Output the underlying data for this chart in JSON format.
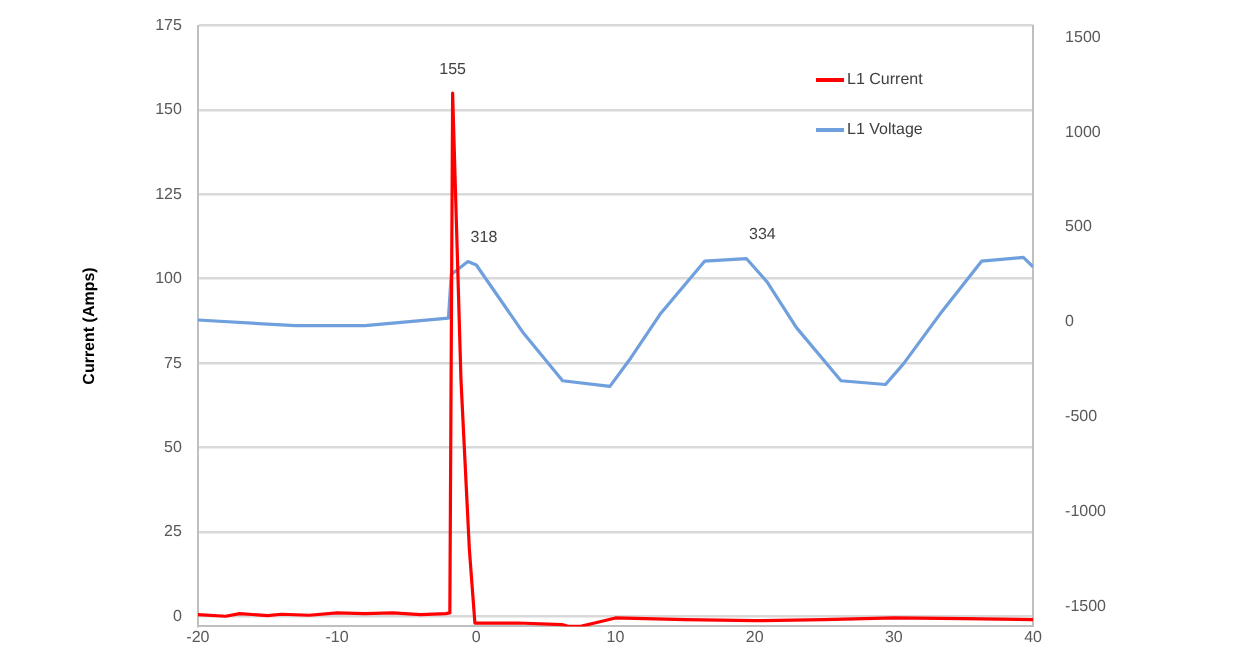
{
  "chart_data": {
    "type": "line",
    "ylabel": "Current (Amps)",
    "xlim": [
      -20,
      40
    ],
    "xticks": [
      -20,
      -10,
      0,
      10,
      20,
      30,
      40
    ],
    "ylim": [
      -3,
      175
    ],
    "yticks": [
      0,
      25,
      50,
      75,
      100,
      125,
      150,
      175
    ],
    "y2lim": [
      -1605,
      1562
    ],
    "y2ticks": [
      -1500,
      -1000,
      -500,
      0,
      500,
      1000,
      1500
    ],
    "grid": "y",
    "legend": "top right",
    "marker": "none",
    "series": [
      {
        "name": "L1 Current",
        "color": "#ff0000",
        "x": [
          -20,
          -18,
          -17,
          -15,
          -14,
          -12,
          -10,
          -8,
          -6,
          -4,
          -2.2,
          -1.9,
          -1.7,
          -1.1,
          -0.5,
          -0.1,
          3,
          6.2,
          6.6,
          7.5,
          8.5,
          10,
          15,
          20,
          25,
          30,
          35,
          40
        ],
        "values": [
          0.5,
          0,
          0.8,
          0.2,
          0.6,
          0.3,
          1,
          0.8,
          1,
          0.5,
          0.8,
          1,
          155,
          70,
          20,
          -2,
          -2,
          -2.5,
          -3,
          -3,
          -2,
          -0.5,
          -1,
          -1.3,
          -1,
          -0.5,
          -0.7,
          -1
        ],
        "value_labels": [
          null,
          null,
          null,
          null,
          null,
          null,
          null,
          null,
          null,
          null,
          null,
          null,
          "155",
          null,
          null,
          null,
          null,
          null,
          null,
          null,
          null,
          null,
          null,
          null,
          null,
          null,
          null,
          null
        ]
      },
      {
        "name": "L1 Voltage",
        "color": "#6f9fdc",
        "axis": "y2",
        "x": [
          -20,
          -13,
          -8,
          -2,
          -1.8,
          -0.6,
          0,
          3.4,
          6.2,
          9.6,
          11.1,
          13.2,
          16.4,
          19.4,
          20.9,
          23,
          26.2,
          29.4,
          30.7,
          33.3,
          36.3,
          39.3,
          40
        ],
        "values": [
          10,
          -20,
          -20,
          20,
          250,
          318,
          300,
          -60,
          -310,
          -340,
          -190,
          40,
          320,
          334,
          210,
          -30,
          -310,
          -330,
          -220,
          40,
          320,
          340,
          290
        ],
        "value_labels": [
          null,
          null,
          null,
          null,
          null,
          "318",
          null,
          null,
          null,
          null,
          null,
          null,
          null,
          "334",
          null,
          null,
          null,
          null,
          null,
          null,
          null,
          null,
          null
        ]
      }
    ]
  }
}
